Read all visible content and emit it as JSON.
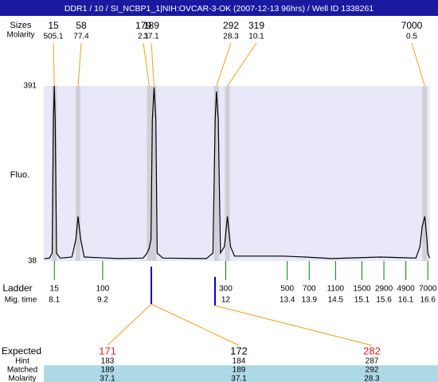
{
  "chart_data": {
    "type": "electropherogram",
    "title": "DDR1 / 10 / SI_NCBP1_1|NIH:OVCAR-3-OK (2007-12-13 96hrs) / Well ID 1338261",
    "peak_row_labels": [
      "Sizes",
      "Molarity"
    ],
    "peaks": {
      "sizes": [
        15,
        58,
        179,
        189,
        292,
        319,
        7000
      ],
      "molarity": [
        505.1,
        77.4,
        2.1,
        37.1,
        28.3,
        10.1,
        0.5
      ],
      "times": [
        8.1,
        8.64,
        10.26,
        10.37,
        11.79,
        12.04,
        16.53
      ]
    },
    "ylabel": "Fluo.",
    "ylim": [
      38,
      391
    ],
    "yticks": [
      38,
      391
    ],
    "xlim": [
      7.86,
      16.65
    ],
    "trace": {
      "color": "#000000",
      "x": [
        7.87,
        7.99,
        8.05,
        8.08,
        8.1,
        8.12,
        8.15,
        8.23,
        8.5,
        8.59,
        8.64,
        8.7,
        8.78,
        9.58,
        10.12,
        10.21,
        10.26,
        10.3,
        10.33,
        10.37,
        10.41,
        10.44,
        10.57,
        11.56,
        11.71,
        11.76,
        11.79,
        11.83,
        11.88,
        11.97,
        12.04,
        12.11,
        12.2,
        13.31,
        13.81,
        14.41,
        15.52,
        16.33,
        16.42,
        16.47,
        16.53,
        16.58,
        16.6,
        16.64
      ],
      "y": [
        42.8,
        44,
        54,
        323,
        391,
        323,
        54,
        44,
        46,
        82,
        128,
        82,
        46,
        43,
        44,
        54,
        64,
        82,
        323,
        388,
        323,
        54,
        44,
        43,
        54,
        323,
        380,
        323,
        54,
        67,
        128,
        67,
        48,
        48,
        46,
        43,
        46,
        44,
        67,
        107,
        128,
        82,
        54,
        44
      ]
    },
    "ladder_labels": [
      "Ladder",
      "Mig. time"
    ],
    "ladder": {
      "sizes": [
        15,
        100,
        300,
        500,
        700,
        1100,
        1500,
        2900,
        4900,
        7000
      ],
      "mig_times": [
        8.1,
        9.2,
        12,
        13.4,
        13.9,
        14.5,
        15.1,
        15.6,
        16.1,
        16.6
      ]
    },
    "table": {
      "row_labels": [
        "Expected",
        "Hint",
        "Matched",
        "Molarity"
      ],
      "expected": [
        171,
        172,
        282
      ],
      "hint": [
        183,
        184,
        287
      ],
      "matched": [
        189,
        189,
        292
      ],
      "molarity": [
        37.1,
        37.1,
        28.3
      ]
    }
  }
}
